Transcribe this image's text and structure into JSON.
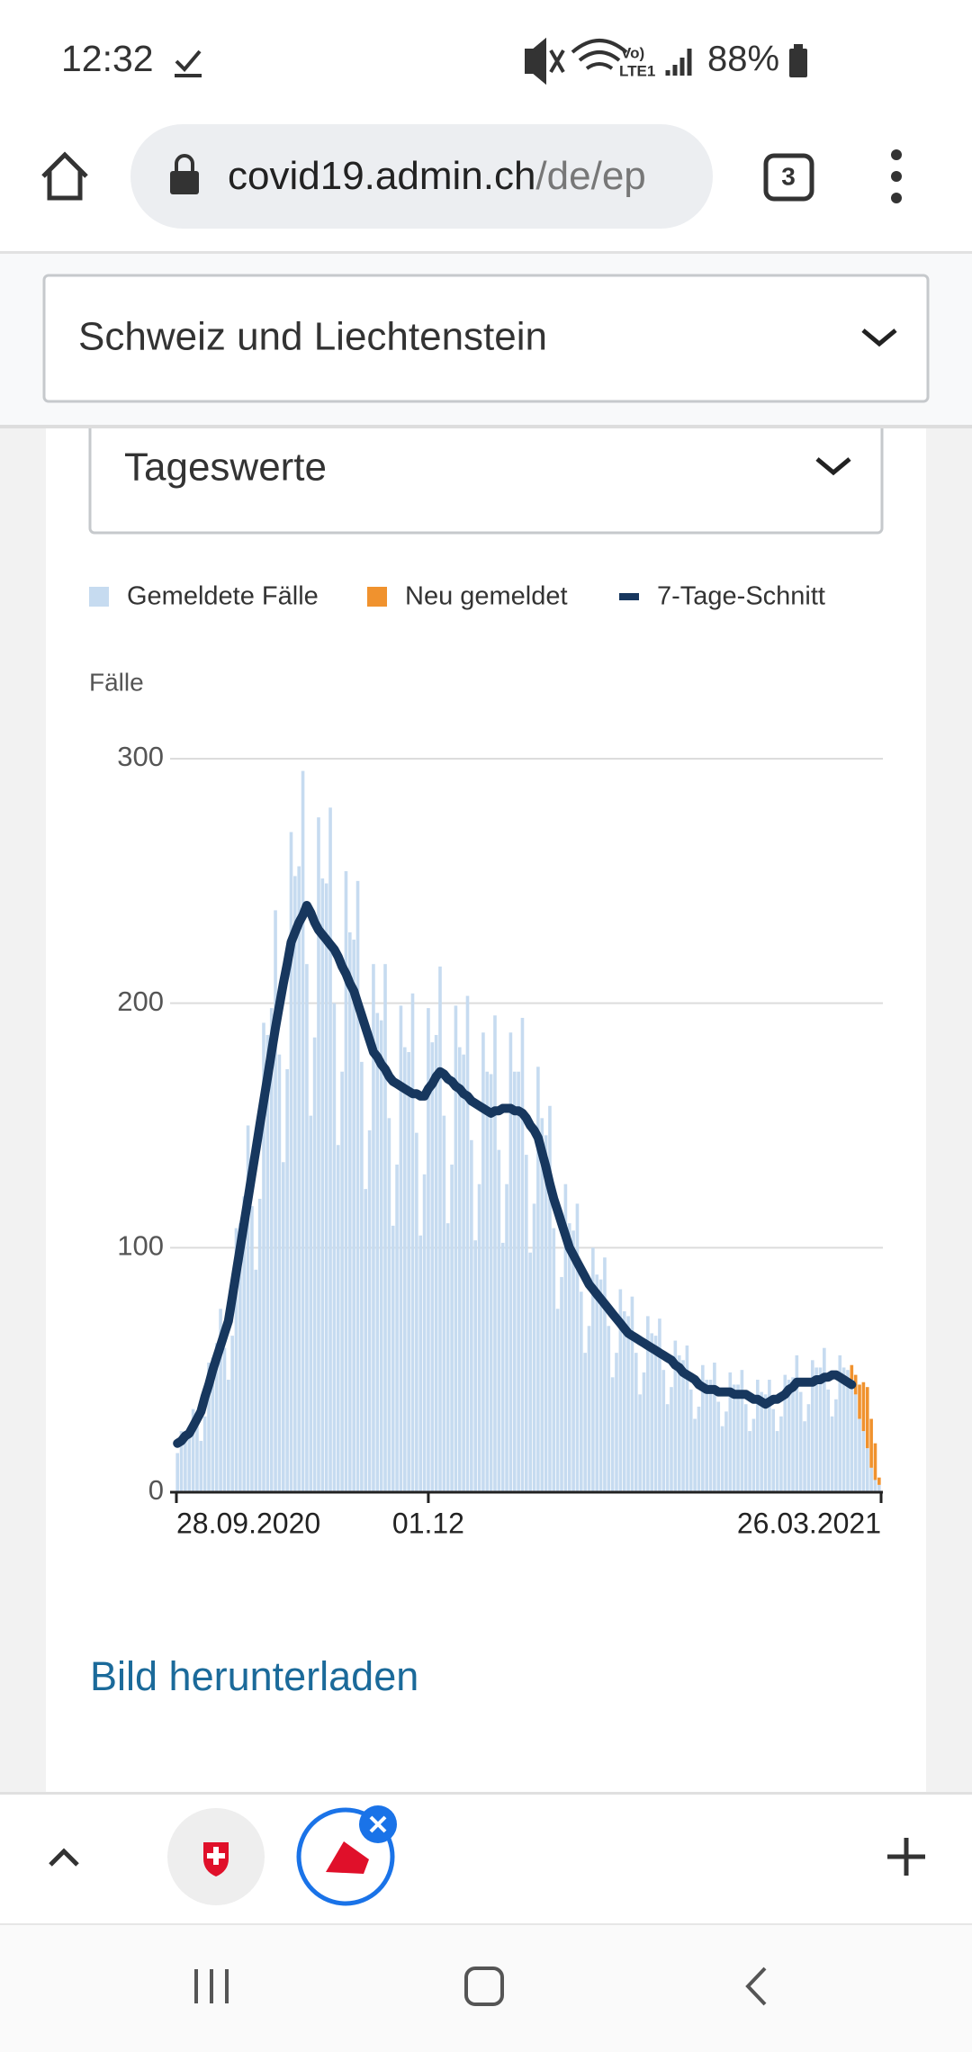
{
  "status_bar": {
    "time": "12:32",
    "battery": "88%"
  },
  "browser": {
    "url_host": "covid19.admin.ch",
    "url_path": "/de/ep",
    "tab_count": "3"
  },
  "selectors": {
    "region": "Schweiz und Liechtenstein",
    "period": "Tageswerte"
  },
  "download_link": "Bild herunterladen",
  "chart_data": {
    "type": "bar",
    "y_label": "Fälle",
    "categories": [
      "28.09.2020",
      null,
      null,
      null,
      null,
      null,
      null,
      null,
      null,
      null,
      null,
      null,
      null,
      null,
      null,
      null,
      null,
      null,
      null,
      null,
      null,
      null,
      null,
      null,
      null,
      null,
      null,
      null,
      null,
      null,
      null,
      null,
      null,
      null,
      null,
      null,
      null,
      null,
      null,
      null,
      null,
      null,
      null,
      null,
      null,
      null,
      null,
      null,
      null,
      null,
      null,
      null,
      null,
      null,
      null,
      null,
      null,
      null,
      null,
      null,
      null,
      null,
      null,
      null,
      "01.12",
      null,
      null,
      null,
      null,
      null,
      null,
      null,
      null,
      null,
      null,
      null,
      null,
      null,
      null,
      null,
      null,
      null,
      null,
      null,
      null,
      null,
      null,
      null,
      null,
      null,
      null,
      null,
      null,
      null,
      null,
      null,
      null,
      null,
      null,
      null,
      null,
      null,
      null,
      null,
      null,
      null,
      null,
      null,
      null,
      null,
      null,
      null,
      null,
      null,
      null,
      null,
      null,
      null,
      null,
      null,
      null,
      null,
      null,
      null,
      null,
      null,
      null,
      null,
      null,
      null,
      null,
      null,
      null,
      null,
      null,
      null,
      null,
      null,
      null,
      null,
      null,
      null,
      null,
      null,
      null,
      null,
      null,
      null,
      null,
      null,
      null,
      null,
      null,
      null,
      null,
      null,
      null,
      null,
      null,
      null,
      null,
      null,
      null,
      null,
      null,
      null,
      null,
      null,
      null,
      null,
      null,
      null,
      null,
      null,
      null,
      null,
      null,
      null,
      null,
      "26.03.2021"
    ],
    "series": [
      {
        "name": "Gemeldete Fälle",
        "type": "bar",
        "color": "#c6dbf0",
        "values": [
          16,
          25,
          25,
          26,
          34,
          27,
          21,
          31,
          53,
          55,
          61,
          75,
          59,
          46,
          64,
          108,
          110,
          121,
          150,
          117,
          91,
          120,
          192,
          187,
          198,
          238,
          179,
          135,
          173,
          270,
          252,
          256,
          295,
          216,
          154,
          186,
          276,
          251,
          249,
          280,
          200,
          142,
          172,
          254,
          229,
          226,
          250,
          176,
          124,
          148,
          216,
          196,
          193,
          216,
          153,
          109,
          134,
          199,
          182,
          180,
          204,
          147,
          105,
          130,
          198,
          184,
          187,
          215,
          154,
          110,
          134,
          199,
          182,
          179,
          203,
          144,
          103,
          126,
          188,
          172,
          171,
          195,
          140,
          102,
          126,
          188,
          172,
          172,
          194,
          138,
          98,
          118,
          174,
          153,
          146,
          158,
          108,
          75,
          88,
          126,
          110,
          107,
          118,
          82,
          57,
          68,
          100,
          89,
          87,
          96,
          68,
          47,
          57,
          83,
          74,
          72,
          80,
          57,
          40,
          49,
          72,
          65,
          64,
          71,
          50,
          36,
          43,
          62,
          56,
          54,
          60,
          42,
          30,
          35,
          52,
          46,
          46,
          53,
          37,
          27,
          33,
          49,
          44,
          44,
          50,
          36,
          25,
          30,
          46,
          41,
          40,
          46,
          34,
          25,
          31,
          48,
          46,
          47,
          56,
          41,
          29,
          36,
          54,
          51,
          51,
          59,
          42,
          31,
          38,
          56,
          51,
          50,
          46,
          40,
          30,
          25,
          18,
          10,
          5,
          3
        ]
      },
      {
        "name": "Neu gemeldet",
        "type": "bar",
        "stacked": true,
        "color": "#f0922e",
        "values": [
          null,
          null,
          null,
          null,
          null,
          null,
          null,
          null,
          null,
          null,
          null,
          null,
          null,
          null,
          null,
          null,
          null,
          null,
          null,
          null,
          null,
          null,
          null,
          null,
          null,
          null,
          null,
          null,
          null,
          null,
          null,
          null,
          null,
          null,
          null,
          null,
          null,
          null,
          null,
          null,
          null,
          null,
          null,
          null,
          null,
          null,
          null,
          null,
          null,
          null,
          null,
          null,
          null,
          null,
          null,
          null,
          null,
          null,
          null,
          null,
          null,
          null,
          null,
          null,
          null,
          null,
          null,
          null,
          null,
          null,
          null,
          null,
          null,
          null,
          null,
          null,
          null,
          null,
          null,
          null,
          null,
          null,
          null,
          null,
          null,
          null,
          null,
          null,
          null,
          null,
          null,
          null,
          null,
          null,
          null,
          null,
          null,
          null,
          null,
          null,
          null,
          null,
          null,
          null,
          null,
          null,
          null,
          null,
          null,
          null,
          null,
          null,
          null,
          null,
          null,
          null,
          null,
          null,
          null,
          null,
          null,
          null,
          null,
          null,
          null,
          null,
          null,
          null,
          null,
          null,
          null,
          null,
          null,
          null,
          null,
          null,
          null,
          null,
          null,
          null,
          null,
          null,
          null,
          null,
          null,
          null,
          null,
          null,
          null,
          null,
          null,
          null,
          null,
          null,
          null,
          null,
          null,
          null,
          null,
          null,
          null,
          null,
          null,
          null,
          null,
          null,
          null,
          null,
          null,
          null,
          null,
          null,
          6,
          8,
          14,
          20,
          25,
          20,
          15,
          3
        ]
      },
      {
        "name": "7-Tage-Schnitt",
        "type": "line",
        "color": "#17375e",
        "values": [
          20,
          21,
          23,
          24,
          27,
          30,
          33,
          39,
          44,
          50,
          55,
          60,
          65,
          70,
          80,
          90,
          100,
          110,
          120,
          130,
          140,
          150,
          160,
          170,
          180,
          190,
          199,
          208,
          216,
          225,
          229,
          233,
          236,
          240,
          237,
          233,
          230,
          228,
          226,
          224,
          222,
          219,
          215,
          212,
          208,
          205,
          200,
          195,
          190,
          185,
          180,
          178,
          175,
          173,
          170,
          168,
          167,
          166,
          165,
          164,
          163,
          163,
          162,
          162,
          165,
          167,
          170,
          172,
          171,
          169,
          168,
          166,
          165,
          163,
          162,
          160,
          159,
          158,
          157,
          156,
          155,
          156,
          156,
          157,
          157,
          157,
          156,
          156,
          155,
          153,
          150,
          148,
          145,
          139,
          133,
          126,
          120,
          115,
          110,
          105,
          100,
          97,
          94,
          91,
          88,
          85,
          83,
          81,
          79,
          77,
          75,
          73,
          71,
          69,
          67,
          65,
          64,
          63,
          62,
          61,
          60,
          59,
          58,
          57,
          56,
          55,
          54,
          52,
          51,
          49,
          48,
          47,
          46,
          44,
          43,
          42,
          42,
          42,
          41,
          41,
          41,
          41,
          40,
          40,
          40,
          40,
          39,
          38,
          38,
          37,
          36,
          37,
          38,
          38,
          39,
          40,
          42,
          43,
          45,
          45,
          45,
          45,
          45,
          46,
          46,
          47,
          47,
          48,
          48,
          47,
          46,
          45,
          44,
          null,
          null,
          null,
          null,
          null,
          null,
          null
        ]
      }
    ],
    "ylim": [
      0,
      300
    ],
    "yticks": [
      0,
      100,
      200,
      300
    ],
    "grid": true
  }
}
